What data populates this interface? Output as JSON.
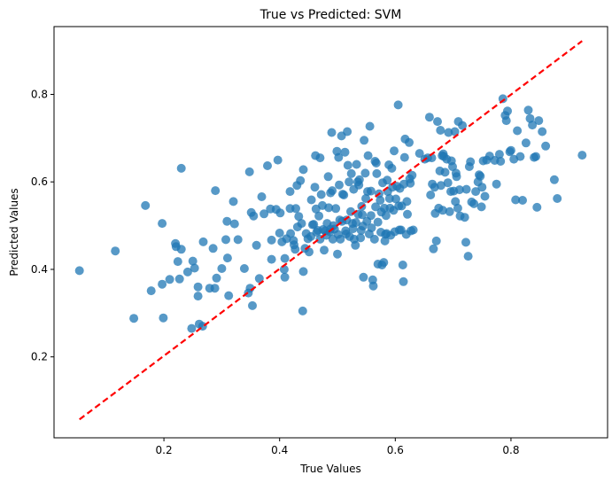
{
  "chart_data": {
    "type": "scatter",
    "title": "True vs Predicted: SVM",
    "xlabel": "True Values",
    "ylabel": "Predicted Values",
    "xlim": [
      0.01,
      0.967
    ],
    "ylim": [
      0.015,
      0.955
    ],
    "xticks": [
      0.2,
      0.4,
      0.6,
      0.8
    ],
    "yticks": [
      0.2,
      0.4,
      0.6,
      0.8
    ],
    "tick_labels_x": [
      "0.2",
      "0.4",
      "0.6",
      "0.8"
    ],
    "tick_labels_y": [
      "0.2",
      "0.4",
      "0.6",
      "0.8"
    ],
    "grid": false,
    "point_color": "#1f77b4",
    "reference_line": {
      "x": [
        0.054,
        0.923
      ],
      "y": [
        0.057,
        0.922
      ],
      "color": "#ff0000",
      "style": "dashed"
    },
    "points": [
      [
        0.054,
        0.397
      ],
      [
        0.116,
        0.442
      ],
      [
        0.148,
        0.288
      ],
      [
        0.168,
        0.546
      ],
      [
        0.178,
        0.351
      ],
      [
        0.197,
        0.505
      ],
      [
        0.197,
        0.366
      ],
      [
        0.199,
        0.289
      ],
      [
        0.21,
        0.377
      ],
      [
        0.22,
        0.459
      ],
      [
        0.221,
        0.452
      ],
      [
        0.224,
        0.418
      ],
      [
        0.227,
        0.378
      ],
      [
        0.23,
        0.631
      ],
      [
        0.23,
        0.446
      ],
      [
        0.241,
        0.394
      ],
      [
        0.248,
        0.265
      ],
      [
        0.25,
        0.419
      ],
      [
        0.253,
        0.403
      ],
      [
        0.259,
        0.36
      ],
      [
        0.259,
        0.339
      ],
      [
        0.261,
        0.275
      ],
      [
        0.267,
        0.27
      ],
      [
        0.268,
        0.463
      ],
      [
        0.279,
        0.357
      ],
      [
        0.285,
        0.448
      ],
      [
        0.288,
        0.357
      ],
      [
        0.289,
        0.58
      ],
      [
        0.291,
        0.38
      ],
      [
        0.3,
        0.402
      ],
      [
        0.307,
        0.468
      ],
      [
        0.309,
        0.51
      ],
      [
        0.31,
        0.426
      ],
      [
        0.312,
        0.34
      ],
      [
        0.32,
        0.555
      ],
      [
        0.322,
        0.504
      ],
      [
        0.328,
        0.468
      ],
      [
        0.339,
        0.402
      ],
      [
        0.346,
        0.346
      ],
      [
        0.348,
        0.623
      ],
      [
        0.349,
        0.357
      ],
      [
        0.351,
        0.53
      ],
      [
        0.353,
        0.317
      ],
      [
        0.355,
        0.522
      ],
      [
        0.36,
        0.455
      ],
      [
        0.365,
        0.379
      ],
      [
        0.369,
        0.566
      ],
      [
        0.373,
        0.527
      ],
      [
        0.379,
        0.637
      ],
      [
        0.384,
        0.538
      ],
      [
        0.386,
        0.467
      ],
      [
        0.386,
        0.423
      ],
      [
        0.394,
        0.537
      ],
      [
        0.397,
        0.65
      ],
      [
        0.4,
        0.483
      ],
      [
        0.401,
        0.529
      ],
      [
        0.404,
        0.463
      ],
      [
        0.408,
        0.4
      ],
      [
        0.409,
        0.382
      ],
      [
        0.409,
        0.425
      ],
      [
        0.412,
        0.47
      ],
      [
        0.418,
        0.539
      ],
      [
        0.418,
        0.578
      ],
      [
        0.419,
        0.482
      ],
      [
        0.424,
        0.466
      ],
      [
        0.425,
        0.456
      ],
      [
        0.427,
        0.446
      ],
      [
        0.428,
        0.539
      ],
      [
        0.43,
        0.592
      ],
      [
        0.431,
        0.497
      ],
      [
        0.433,
        0.521
      ],
      [
        0.436,
        0.603
      ],
      [
        0.438,
        0.505
      ],
      [
        0.44,
        0.305
      ],
      [
        0.441,
        0.395
      ],
      [
        0.441,
        0.628
      ],
      [
        0.444,
        0.448
      ],
      [
        0.446,
        0.482
      ],
      [
        0.449,
        0.47
      ],
      [
        0.451,
        0.44
      ],
      [
        0.454,
        0.475
      ],
      [
        0.455,
        0.559
      ],
      [
        0.457,
        0.502
      ],
      [
        0.459,
        0.503
      ],
      [
        0.461,
        0.588
      ],
      [
        0.462,
        0.66
      ],
      [
        0.463,
        0.538
      ],
      [
        0.464,
        0.485
      ],
      [
        0.466,
        0.489
      ],
      [
        0.468,
        0.522
      ],
      [
        0.47,
        0.469
      ],
      [
        0.47,
        0.655
      ],
      [
        0.472,
        0.571
      ],
      [
        0.474,
        0.546
      ],
      [
        0.475,
        0.491
      ],
      [
        0.477,
        0.444
      ],
      [
        0.479,
        0.488
      ],
      [
        0.481,
        0.478
      ],
      [
        0.482,
        0.505
      ],
      [
        0.484,
        0.612
      ],
      [
        0.485,
        0.541
      ],
      [
        0.487,
        0.486
      ],
      [
        0.488,
        0.575
      ],
      [
        0.488,
        0.492
      ],
      [
        0.49,
        0.713
      ],
      [
        0.491,
        0.58
      ],
      [
        0.492,
        0.469
      ],
      [
        0.493,
        0.5
      ],
      [
        0.495,
        0.492
      ],
      [
        0.497,
        0.539
      ],
      [
        0.499,
        0.67
      ],
      [
        0.5,
        0.435
      ],
      [
        0.501,
        0.48
      ],
      [
        0.502,
        0.656
      ],
      [
        0.503,
        0.593
      ],
      [
        0.504,
        0.513
      ],
      [
        0.505,
        0.469
      ],
      [
        0.507,
        0.705
      ],
      [
        0.508,
        0.51
      ],
      [
        0.509,
        0.572
      ],
      [
        0.511,
        0.57
      ],
      [
        0.513,
        0.668
      ],
      [
        0.514,
        0.488
      ],
      [
        0.515,
        0.481
      ],
      [
        0.516,
        0.513
      ],
      [
        0.517,
        0.715
      ],
      [
        0.518,
        0.638
      ],
      [
        0.52,
        0.6
      ],
      [
        0.521,
        0.475
      ],
      [
        0.523,
        0.532
      ],
      [
        0.524,
        0.619
      ],
      [
        0.526,
        0.505
      ],
      [
        0.527,
        0.493
      ],
      [
        0.528,
        0.583
      ],
      [
        0.529,
        0.469
      ],
      [
        0.531,
        0.455
      ],
      [
        0.532,
        0.507
      ],
      [
        0.533,
        0.64
      ],
      [
        0.535,
        0.6
      ],
      [
        0.536,
        0.526
      ],
      [
        0.537,
        0.593
      ],
      [
        0.538,
        0.605
      ],
      [
        0.54,
        0.472
      ],
      [
        0.541,
        0.489
      ],
      [
        0.542,
        0.544
      ],
      [
        0.543,
        0.525
      ],
      [
        0.544,
        0.499
      ],
      [
        0.545,
        0.382
      ],
      [
        0.546,
        0.695
      ],
      [
        0.548,
        0.62
      ],
      [
        0.549,
        0.562
      ],
      [
        0.551,
        0.51
      ],
      [
        0.552,
        0.578
      ],
      [
        0.553,
        0.66
      ],
      [
        0.555,
        0.481
      ],
      [
        0.556,
        0.727
      ],
      [
        0.558,
        0.523
      ],
      [
        0.558,
        0.579
      ],
      [
        0.559,
        0.495
      ],
      [
        0.561,
        0.376
      ],
      [
        0.562,
        0.362
      ],
      [
        0.564,
        0.469
      ],
      [
        0.565,
        0.647
      ],
      [
        0.566,
        0.543
      ],
      [
        0.567,
        0.643
      ],
      [
        0.568,
        0.619
      ],
      [
        0.57,
        0.508
      ],
      [
        0.57,
        0.412
      ],
      [
        0.572,
        0.573
      ],
      [
        0.574,
        0.558
      ],
      [
        0.575,
        0.485
      ],
      [
        0.576,
        0.531
      ],
      [
        0.577,
        0.41
      ],
      [
        0.578,
        0.598
      ],
      [
        0.58,
        0.416
      ],
      [
        0.581,
        0.54
      ],
      [
        0.582,
        0.465
      ],
      [
        0.583,
        0.48
      ],
      [
        0.584,
        0.523
      ],
      [
        0.585,
        0.482
      ],
      [
        0.586,
        0.604
      ],
      [
        0.587,
        0.578
      ],
      [
        0.589,
        0.639
      ],
      [
        0.59,
        0.562
      ],
      [
        0.591,
        0.54
      ],
      [
        0.592,
        0.478
      ],
      [
        0.594,
        0.631
      ],
      [
        0.595,
        0.588
      ],
      [
        0.597,
        0.535
      ],
      [
        0.598,
        0.671
      ],
      [
        0.599,
        0.486
      ],
      [
        0.601,
        0.561
      ],
      [
        0.603,
        0.59
      ],
      [
        0.605,
        0.776
      ],
      [
        0.606,
        0.545
      ],
      [
        0.607,
        0.49
      ],
      [
        0.608,
        0.585
      ],
      [
        0.61,
        0.49
      ],
      [
        0.611,
        0.545
      ],
      [
        0.613,
        0.41
      ],
      [
        0.614,
        0.372
      ],
      [
        0.615,
        0.595
      ],
      [
        0.616,
        0.656
      ],
      [
        0.617,
        0.698
      ],
      [
        0.619,
        0.48
      ],
      [
        0.62,
        0.555
      ],
      [
        0.621,
        0.526
      ],
      [
        0.624,
        0.69
      ],
      [
        0.625,
        0.607
      ],
      [
        0.626,
        0.597
      ],
      [
        0.627,
        0.488
      ],
      [
        0.629,
        0.615
      ],
      [
        0.631,
        0.49
      ],
      [
        0.642,
        0.665
      ],
      [
        0.651,
        0.652
      ],
      [
        0.656,
        0.655
      ],
      [
        0.659,
        0.748
      ],
      [
        0.661,
        0.57
      ],
      [
        0.663,
        0.655
      ],
      [
        0.664,
        0.595
      ],
      [
        0.666,
        0.447
      ],
      [
        0.668,
        0.588
      ],
      [
        0.669,
        0.528
      ],
      [
        0.671,
        0.465
      ],
      [
        0.673,
        0.738
      ],
      [
        0.675,
        0.54
      ],
      [
        0.677,
        0.625
      ],
      [
        0.678,
        0.718
      ],
      [
        0.679,
        0.592
      ],
      [
        0.681,
        0.66
      ],
      [
        0.682,
        0.535
      ],
      [
        0.683,
        0.664
      ],
      [
        0.684,
        0.658
      ],
      [
        0.686,
        0.622
      ],
      [
        0.689,
        0.652
      ],
      [
        0.691,
        0.598
      ],
      [
        0.692,
        0.713
      ],
      [
        0.694,
        0.532
      ],
      [
        0.696,
        0.578
      ],
      [
        0.697,
        0.648
      ],
      [
        0.699,
        0.635
      ],
      [
        0.701,
        0.579
      ],
      [
        0.703,
        0.715
      ],
      [
        0.704,
        0.555
      ],
      [
        0.705,
        0.62
      ],
      [
        0.706,
        0.612
      ],
      [
        0.708,
        0.54
      ],
      [
        0.709,
        0.738
      ],
      [
        0.711,
        0.582
      ],
      [
        0.712,
        0.522
      ],
      [
        0.716,
        0.729
      ],
      [
        0.72,
        0.519
      ],
      [
        0.722,
        0.462
      ],
      [
        0.723,
        0.583
      ],
      [
        0.726,
        0.43
      ],
      [
        0.728,
        0.635
      ],
      [
        0.73,
        0.646
      ],
      [
        0.732,
        0.554
      ],
      [
        0.736,
        0.55
      ],
      [
        0.739,
        0.578
      ],
      [
        0.743,
        0.6
      ],
      [
        0.745,
        0.616
      ],
      [
        0.747,
        0.613
      ],
      [
        0.749,
        0.543
      ],
      [
        0.75,
        0.588
      ],
      [
        0.752,
        0.648
      ],
      [
        0.755,
        0.567
      ],
      [
        0.758,
        0.65
      ],
      [
        0.763,
        0.659
      ],
      [
        0.772,
        0.649
      ],
      [
        0.775,
        0.595
      ],
      [
        0.78,
        0.663
      ],
      [
        0.782,
        0.647
      ],
      [
        0.786,
        0.79
      ],
      [
        0.79,
        0.752
      ],
      [
        0.792,
        0.74
      ],
      [
        0.794,
        0.762
      ],
      [
        0.798,
        0.669
      ],
      [
        0.8,
        0.672
      ],
      [
        0.805,
        0.652
      ],
      [
        0.808,
        0.559
      ],
      [
        0.811,
        0.717
      ],
      [
        0.816,
        0.658
      ],
      [
        0.82,
        0.558
      ],
      [
        0.826,
        0.689
      ],
      [
        0.83,
        0.764
      ],
      [
        0.833,
        0.745
      ],
      [
        0.837,
        0.73
      ],
      [
        0.84,
        0.656
      ],
      [
        0.843,
        0.658
      ],
      [
        0.845,
        0.542
      ],
      [
        0.848,
        0.74
      ],
      [
        0.854,
        0.715
      ],
      [
        0.86,
        0.682
      ],
      [
        0.875,
        0.605
      ],
      [
        0.88,
        0.562
      ],
      [
        0.923,
        0.661
      ]
    ]
  }
}
